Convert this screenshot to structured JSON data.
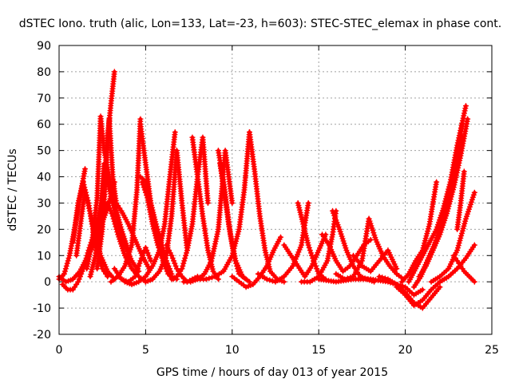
{
  "chart_data": {
    "type": "scatter",
    "title": "dSTEC Iono. truth (alic, Lon=133, Lat=-23, h=603): STEC-STEC_elemax in phase cont.",
    "xlabel": "GPS time / hours of day 013 of year 2015",
    "ylabel": "dSTEC  / TECUs",
    "xlim": [
      0,
      25
    ],
    "ylim": [
      -20,
      90
    ],
    "xticks": [
      0,
      5,
      10,
      15,
      20,
      25
    ],
    "yticks": [
      -20,
      -10,
      0,
      10,
      20,
      30,
      40,
      50,
      60,
      70,
      80,
      90
    ],
    "grid": true,
    "color": "#ff0000",
    "marker": "+",
    "series": [
      {
        "x": [
          0.0,
          0.3,
          0.6,
          0.9,
          1.2,
          1.5
        ],
        "y": [
          1,
          3,
          10,
          20,
          32,
          43
        ]
      },
      {
        "x": [
          0.0,
          0.4,
          0.8,
          1.2,
          1.6,
          2.0,
          2.4,
          2.8,
          3.2
        ],
        "y": [
          2,
          0,
          1,
          4,
          9,
          14,
          21,
          28,
          38
        ]
      },
      {
        "x": [
          0.2,
          0.5,
          0.8,
          1.1,
          1.4,
          1.7,
          2.0,
          2.3,
          2.6
        ],
        "y": [
          -1,
          -3,
          -3,
          0,
          5,
          12,
          18,
          25,
          33
        ]
      },
      {
        "x": [
          0.8,
          1.1,
          1.4,
          1.6,
          1.8,
          2.1,
          2.4,
          2.8,
          3.2
        ],
        "y": [
          15,
          30,
          38,
          32,
          26,
          18,
          10,
          4,
          1
        ]
      },
      {
        "x": [
          1.0,
          1.3,
          1.5,
          1.7,
          1.9,
          2.2,
          2.5,
          2.8
        ],
        "y": [
          10,
          25,
          35,
          30,
          22,
          12,
          5,
          2
        ]
      },
      {
        "x": [
          1.6,
          1.9,
          2.2,
          2.4,
          2.6,
          2.9,
          3.2,
          3.6,
          4.0
        ],
        "y": [
          5,
          15,
          32,
          63,
          50,
          40,
          30,
          20,
          12
        ]
      },
      {
        "x": [
          1.8,
          2.1,
          2.4,
          2.6,
          2.8,
          3.1,
          3.4,
          3.8,
          4.2,
          4.6
        ],
        "y": [
          2,
          10,
          28,
          45,
          38,
          30,
          22,
          14,
          8,
          4
        ]
      },
      {
        "x": [
          2.2,
          2.5,
          2.7,
          2.9,
          3.1,
          3.3,
          3.6,
          4.0,
          4.4,
          4.8,
          5.2
        ],
        "y": [
          5,
          20,
          40,
          62,
          40,
          30,
          27,
          22,
          16,
          10,
          5
        ]
      },
      {
        "x": [
          2.3,
          2.6,
          2.8,
          3.0,
          3.2
        ],
        "y": [
          15,
          35,
          55,
          68,
          80
        ]
      },
      {
        "x": [
          2.5,
          2.8,
          3.1,
          3.4,
          3.8,
          4.2,
          4.6,
          5.0,
          5.4
        ],
        "y": [
          25,
          30,
          25,
          18,
          10,
          5,
          2,
          0,
          1
        ]
      },
      {
        "x": [
          3.2,
          3.6,
          4.0,
          4.4,
          4.7,
          5.0,
          5.3
        ],
        "y": [
          5,
          1,
          0,
          2,
          8,
          13,
          8
        ]
      },
      {
        "x": [
          3.0,
          3.4,
          3.8,
          4.2,
          4.5,
          4.7
        ],
        "y": [
          0,
          2,
          6,
          14,
          35,
          62
        ]
      },
      {
        "x": [
          4.7,
          4.9,
          5.1,
          5.3,
          5.6,
          5.9,
          6.2,
          6.5
        ],
        "y": [
          60,
          50,
          40,
          30,
          22,
          15,
          8,
          3
        ]
      },
      {
        "x": [
          4.7,
          5.0,
          5.3,
          5.6,
          5.9,
          6.2,
          6.5,
          6.8
        ],
        "y": [
          40,
          38,
          30,
          20,
          12,
          6,
          2,
          1
        ]
      },
      {
        "x": [
          4.8,
          5.1,
          5.4,
          5.7,
          6.0,
          6.3,
          6.6
        ],
        "y": [
          38,
          32,
          22,
          14,
          8,
          3,
          1
        ]
      },
      {
        "x": [
          3.8,
          4.2,
          4.6,
          5.0,
          5.4,
          5.8,
          6.1,
          6.4,
          6.7
        ],
        "y": [
          0,
          -1,
          0,
          2,
          6,
          12,
          22,
          40,
          57
        ]
      },
      {
        "x": [
          5.0,
          5.4,
          5.8,
          6.2,
          6.5,
          6.8,
          7.1,
          7.4
        ],
        "y": [
          0,
          1,
          4,
          10,
          25,
          50,
          30,
          12
        ]
      },
      {
        "x": [
          6.2,
          6.5,
          6.8,
          7.1,
          7.4,
          7.7,
          8.0
        ],
        "y": [
          14,
          10,
          5,
          2,
          0,
          1,
          2
        ]
      },
      {
        "x": [
          6.5,
          6.8,
          7.1,
          7.4,
          7.7,
          8.0,
          8.3,
          8.6
        ],
        "y": [
          1,
          2,
          5,
          12,
          22,
          40,
          55,
          30
        ]
      },
      {
        "x": [
          7.7,
          8.0,
          8.3,
          8.6,
          8.9,
          9.2
        ],
        "y": [
          55,
          40,
          25,
          12,
          4,
          1
        ]
      },
      {
        "x": [
          7.2,
          7.6,
          8.0,
          8.4,
          8.8,
          9.2,
          9.6,
          10.0
        ],
        "y": [
          0,
          0,
          1,
          3,
          8,
          20,
          50,
          30
        ]
      },
      {
        "x": [
          9.2,
          9.5,
          9.8,
          10.1,
          10.4,
          10.8
        ],
        "y": [
          50,
          38,
          22,
          10,
          3,
          1
        ]
      },
      {
        "x": [
          9.3,
          9.6,
          9.9,
          10.2,
          10.6,
          11.0
        ],
        "y": [
          45,
          32,
          18,
          8,
          2,
          0
        ]
      },
      {
        "x": [
          8.0,
          8.5,
          9.0,
          9.5,
          10.0,
          10.4,
          10.7,
          11.0
        ],
        "y": [
          1,
          1,
          2,
          4,
          10,
          20,
          35,
          57
        ]
      },
      {
        "x": [
          11.0,
          11.3,
          11.6,
          11.9,
          12.2,
          12.6,
          13.0
        ],
        "y": [
          57,
          42,
          25,
          12,
          4,
          1,
          0
        ]
      },
      {
        "x": [
          10.0,
          10.4,
          10.8,
          11.2,
          11.6,
          12.0,
          12.4,
          12.8
        ],
        "y": [
          2,
          0,
          -2,
          -1,
          2,
          6,
          12,
          17
        ]
      },
      {
        "x": [
          11.5,
          12.0,
          12.5,
          13.0,
          13.5,
          14.0,
          14.4
        ],
        "y": [
          3,
          1,
          0,
          2,
          6,
          14,
          30
        ]
      },
      {
        "x": [
          13.8,
          14.1,
          14.4,
          14.7,
          15.0,
          15.4
        ],
        "y": [
          30,
          22,
          14,
          8,
          3,
          1
        ]
      },
      {
        "x": [
          13.0,
          13.4,
          13.8,
          14.2,
          14.6,
          15.0,
          15.4
        ],
        "y": [
          14,
          10,
          6,
          2,
          6,
          12,
          18
        ]
      },
      {
        "x": [
          14.0,
          14.5,
          15.0,
          15.5,
          15.8,
          16.0
        ],
        "y": [
          0,
          0,
          2,
          8,
          18,
          27
        ]
      },
      {
        "x": [
          15.8,
          16.2,
          16.6,
          17.0,
          17.4,
          17.8,
          18.2
        ],
        "y": [
          27,
          20,
          12,
          6,
          2,
          1,
          0
        ]
      },
      {
        "x": [
          15.2,
          15.6,
          16.0,
          16.4,
          16.8,
          17.2,
          17.6,
          18.0
        ],
        "y": [
          18,
          14,
          8,
          4,
          6,
          10,
          14,
          16
        ]
      },
      {
        "x": [
          16.0,
          16.5,
          17.0,
          17.5,
          17.9
        ],
        "y": [
          3,
          1,
          2,
          8,
          24
        ]
      },
      {
        "x": [
          17.9,
          18.3,
          18.7,
          19.1,
          19.5,
          19.9
        ],
        "y": [
          24,
          16,
          10,
          6,
          3,
          1
        ]
      },
      {
        "x": [
          17.0,
          17.5,
          18.0,
          18.5,
          19.0,
          19.5
        ],
        "y": [
          10,
          6,
          4,
          8,
          12,
          5
        ]
      },
      {
        "x": [
          15.0,
          16.0,
          17.0,
          18.0,
          19.0,
          20.0,
          20.5,
          21.0
        ],
        "y": [
          1,
          0,
          1,
          1,
          0,
          -2,
          -5,
          -3
        ]
      },
      {
        "x": [
          18.5,
          19.0,
          19.5,
          20.0,
          20.5,
          21.0,
          21.5,
          22.0
        ],
        "y": [
          2,
          1,
          -1,
          -4,
          -8,
          -10,
          -6,
          -2
        ]
      },
      {
        "x": [
          19.5,
          20.0,
          20.5,
          21.0,
          21.5,
          22.0,
          22.5,
          23.0
        ],
        "y": [
          -2,
          -5,
          -9,
          -7,
          -3,
          0,
          2,
          5
        ]
      },
      {
        "x": [
          20.2,
          20.6,
          21.0,
          21.4,
          21.8,
          22.2,
          22.6,
          23.0,
          23.5
        ],
        "y": [
          0,
          5,
          10,
          15,
          20,
          28,
          38,
          52,
          67
        ]
      },
      {
        "x": [
          20.5,
          20.9,
          21.3,
          21.7,
          22.1,
          22.5,
          22.9,
          23.3
        ],
        "y": [
          -2,
          2,
          8,
          14,
          22,
          32,
          45,
          60
        ]
      },
      {
        "x": [
          20.8,
          21.2,
          21.6,
          22.0,
          22.4,
          22.8,
          23.2,
          23.6
        ],
        "y": [
          2,
          6,
          12,
          18,
          26,
          36,
          48,
          62
        ]
      },
      {
        "x": [
          21.0,
          21.4,
          21.8,
          22.2,
          22.6,
          23.0,
          23.3
        ],
        "y": [
          4,
          10,
          16,
          25,
          35,
          45,
          55
        ]
      },
      {
        "x": [
          19.8,
          20.2,
          20.6,
          21.0,
          21.4,
          21.8
        ],
        "y": [
          0,
          3,
          8,
          12,
          22,
          38
        ]
      },
      {
        "x": [
          21.5,
          22.0,
          22.5,
          23.0,
          23.5,
          24.0
        ],
        "y": [
          0,
          2,
          5,
          12,
          24,
          34
        ]
      },
      {
        "x": [
          22.0,
          22.5,
          23.0,
          23.5,
          24.0
        ],
        "y": [
          0,
          2,
          5,
          9,
          14
        ]
      },
      {
        "x": [
          22.8,
          23.1,
          23.4,
          23.7,
          24.0
        ],
        "y": [
          10,
          7,
          4,
          2,
          0
        ]
      },
      {
        "x": [
          23.0,
          23.2,
          23.4
        ],
        "y": [
          20,
          30,
          42
        ]
      }
    ]
  }
}
